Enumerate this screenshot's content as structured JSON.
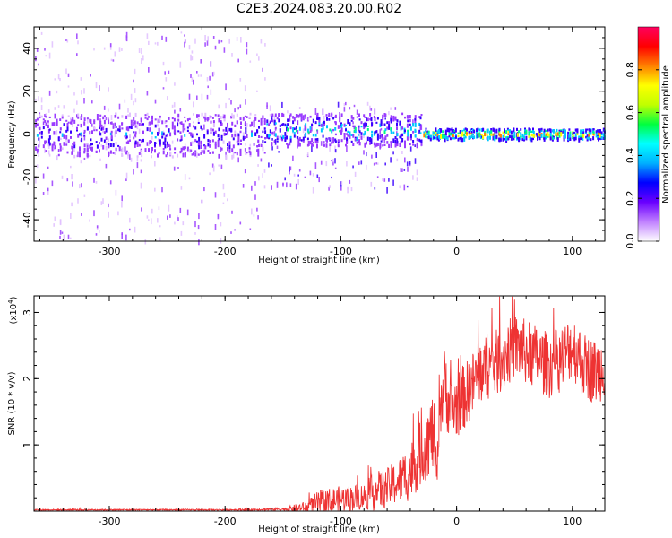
{
  "figure": {
    "title": "C2E3.2024.083.20.00.R02"
  },
  "chart_data": [
    {
      "type": "heatmap",
      "xlabel": "Height of straight line (km)",
      "ylabel": "Frequency (Hz)",
      "xlim": [
        -365,
        128
      ],
      "ylim": [
        -50,
        50
      ],
      "x_ticks": [
        -300,
        -200,
        -100,
        0,
        100
      ],
      "x_tick_labels": [
        "-300",
        "-200",
        "-100",
        "0",
        "100"
      ],
      "y_ticks": [
        40,
        20,
        0,
        -20,
        -40
      ],
      "y_tick_labels": [
        "40",
        "20",
        "0",
        "-20",
        "-40"
      ],
      "colorbar": {
        "label": "Normalized spectral amplitude",
        "range": [
          0,
          1
        ],
        "ticks": [
          0.0,
          0.2,
          0.4,
          0.6,
          0.8
        ],
        "tick_labels": [
          "0.0",
          "0.2",
          "0.4",
          "0.6",
          "0.8"
        ],
        "colormap": [
          "#ffffff",
          "#e0c0ff",
          "#9a3cff",
          "#3a00ff",
          "#00c8ff",
          "#00ff80",
          "#ffff00",
          "#ff8000",
          "#ff0000",
          "#ff0080"
        ]
      },
      "regions": [
        {
          "x_range": [
            -365,
            -165
          ],
          "noise_spread_hz": [
            -50,
            48
          ],
          "core_band_hz": [
            -10,
            10
          ],
          "peak_amplitude": 0.45
        },
        {
          "x_range": [
            -165,
            -30
          ],
          "noise_spread_hz": [
            -25,
            15
          ],
          "core_band_hz": [
            -5,
            10
          ],
          "center_hz": 0,
          "peak_amplitude": 0.6
        },
        {
          "x_range": [
            -30,
            128
          ],
          "core_band_hz": [
            -2,
            3
          ],
          "center_hz": 0,
          "peak_amplitude": 0.9
        }
      ],
      "grid": false
    },
    {
      "type": "line",
      "xlabel": "Height of straight line (km)",
      "ylabel": "SNR (10 * v/v)",
      "y_scale_label": "(x10",
      "y_scale_exponent": "4",
      "xlim": [
        -365,
        128
      ],
      "ylim": [
        0,
        3.25
      ],
      "x_ticks": [
        -300,
        -200,
        -100,
        0,
        100
      ],
      "x_tick_labels": [
        "-300",
        "-200",
        "-100",
        "0",
        "100"
      ],
      "y_ticks": [
        1,
        2,
        3
      ],
      "y_tick_labels": [
        "1",
        "2",
        "3"
      ],
      "series": [
        {
          "color": "#ee3333",
          "x": [
            -365,
            -300,
            -200,
            -150,
            -130,
            -120,
            -110,
            -100,
            -90,
            -80,
            -70,
            -60,
            -50,
            -40,
            -30,
            -20,
            -17,
            -15,
            -10,
            -5,
            0,
            10,
            20,
            30,
            40,
            50,
            60,
            70,
            80,
            90,
            100,
            110,
            120,
            128
          ],
          "y": [
            0.02,
            0.02,
            0.02,
            0.03,
            0.05,
            0.1,
            0.15,
            0.18,
            0.2,
            0.22,
            0.3,
            0.35,
            0.45,
            0.6,
            0.9,
            1.2,
            0.5,
            1.6,
            1.9,
            1.5,
            1.6,
            1.8,
            2.1,
            2.2,
            2.3,
            2.5,
            2.4,
            2.3,
            2.2,
            2.3,
            2.5,
            2.2,
            2.1,
            2.2
          ],
          "noise_amplitude": [
            0.01,
            0.01,
            0.01,
            0.02,
            0.1,
            0.2,
            0.2,
            0.2,
            0.2,
            0.2,
            0.3,
            0.3,
            0.35,
            0.45,
            0.5,
            0.6,
            0.2,
            0.5,
            0.6,
            0.5,
            0.5,
            0.5,
            0.5,
            0.5,
            0.5,
            0.5,
            0.5,
            0.5,
            0.5,
            0.5,
            0.5,
            0.5,
            0.5,
            0.5
          ]
        }
      ],
      "grid": false
    }
  ]
}
